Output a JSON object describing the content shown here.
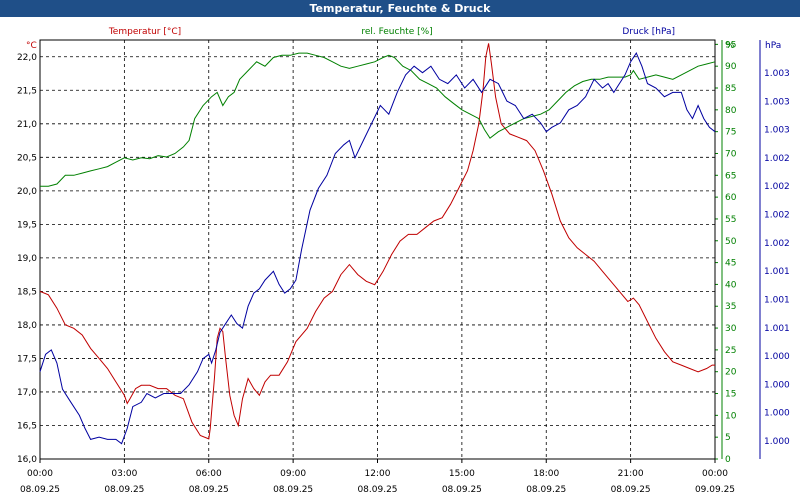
{
  "chart_data": {
    "type": "line",
    "title": "Temperatur, Feuchte & Druck",
    "x_ticks": [
      {
        "time": "00:00",
        "date": "08.09.25"
      },
      {
        "time": "03:00",
        "date": "08.09.25"
      },
      {
        "time": "06:00",
        "date": "08.09.25"
      },
      {
        "time": "09:00",
        "date": "08.09.25"
      },
      {
        "time": "12:00",
        "date": "08.09.25"
      },
      {
        "time": "15:00",
        "date": "08.09.25"
      },
      {
        "time": "18:00",
        "date": "08.09.25"
      },
      {
        "time": "21:00",
        "date": "08.09.25"
      },
      {
        "time": "00:00",
        "date": "09.09.25"
      }
    ],
    "xlim": [
      0,
      24
    ],
    "axes": {
      "temperature": {
        "unit": "°C",
        "ylim": [
          16.0,
          22.25
        ],
        "ticks": [
          "16,0",
          "16,5",
          "17,0",
          "17,5",
          "18,0",
          "18,5",
          "19,0",
          "19,5",
          "20,0",
          "20,5",
          "21,0",
          "21,5",
          "22,0"
        ],
        "color": "#c00000"
      },
      "humidity": {
        "unit": "%",
        "ylim": [
          0,
          96
        ],
        "ticks": [
          "0",
          "5",
          "10",
          "15",
          "20",
          "25",
          "30",
          "35",
          "40",
          "45",
          "50",
          "55",
          "60",
          "65",
          "70",
          "75",
          "80",
          "85",
          "90",
          "95"
        ],
        "color": "#008000"
      },
      "pressure": {
        "unit": "hPa",
        "ticks": [
          "1.000",
          "1.000",
          "1.000",
          "1.000",
          "1.001",
          "1.001",
          "1.001",
          "1.002",
          "1.002",
          "1.002",
          "1.002",
          "1.003",
          "1.003",
          "1.003"
        ],
        "color": "#0000a0"
      }
    },
    "series": [
      {
        "name": "Temperatur [°C]",
        "axis": "temperature",
        "color": "#c00000",
        "points": [
          [
            0,
            18.5
          ],
          [
            0.3,
            18.45
          ],
          [
            0.6,
            18.25
          ],
          [
            0.9,
            18.0
          ],
          [
            1.2,
            17.95
          ],
          [
            1.5,
            17.85
          ],
          [
            1.8,
            17.65
          ],
          [
            2.1,
            17.5
          ],
          [
            2.4,
            17.35
          ],
          [
            2.7,
            17.15
          ],
          [
            3.0,
            16.95
          ],
          [
            3.1,
            16.83
          ],
          [
            3.2,
            16.9
          ],
          [
            3.4,
            17.05
          ],
          [
            3.6,
            17.1
          ],
          [
            3.9,
            17.1
          ],
          [
            4.2,
            17.05
          ],
          [
            4.5,
            17.05
          ],
          [
            4.8,
            16.95
          ],
          [
            5.1,
            16.9
          ],
          [
            5.4,
            16.55
          ],
          [
            5.7,
            16.35
          ],
          [
            6.0,
            16.3
          ],
          [
            6.05,
            16.45
          ],
          [
            6.2,
            17.2
          ],
          [
            6.3,
            17.8
          ],
          [
            6.4,
            17.95
          ],
          [
            6.5,
            17.9
          ],
          [
            6.6,
            17.5
          ],
          [
            6.75,
            16.95
          ],
          [
            6.9,
            16.65
          ],
          [
            7.05,
            16.5
          ],
          [
            7.2,
            16.9
          ],
          [
            7.4,
            17.2
          ],
          [
            7.6,
            17.05
          ],
          [
            7.8,
            16.95
          ],
          [
            8.0,
            17.15
          ],
          [
            8.2,
            17.25
          ],
          [
            8.5,
            17.25
          ],
          [
            8.8,
            17.45
          ],
          [
            9.1,
            17.75
          ],
          [
            9.5,
            17.95
          ],
          [
            9.8,
            18.2
          ],
          [
            10.1,
            18.4
          ],
          [
            10.4,
            18.5
          ],
          [
            10.7,
            18.75
          ],
          [
            11.0,
            18.9
          ],
          [
            11.3,
            18.75
          ],
          [
            11.6,
            18.65
          ],
          [
            11.9,
            18.6
          ],
          [
            12.2,
            18.8
          ],
          [
            12.5,
            19.05
          ],
          [
            12.8,
            19.25
          ],
          [
            13.1,
            19.35
          ],
          [
            13.4,
            19.35
          ],
          [
            13.7,
            19.45
          ],
          [
            14.0,
            19.55
          ],
          [
            14.3,
            19.6
          ],
          [
            14.6,
            19.8
          ],
          [
            14.9,
            20.05
          ],
          [
            15.2,
            20.3
          ],
          [
            15.4,
            20.6
          ],
          [
            15.6,
            21.0
          ],
          [
            15.75,
            21.5
          ],
          [
            15.85,
            22.0
          ],
          [
            15.95,
            22.2
          ],
          [
            16.05,
            21.9
          ],
          [
            16.2,
            21.4
          ],
          [
            16.4,
            21.0
          ],
          [
            16.7,
            20.85
          ],
          [
            17.0,
            20.8
          ],
          [
            17.3,
            20.75
          ],
          [
            17.6,
            20.6
          ],
          [
            17.9,
            20.3
          ],
          [
            18.2,
            19.95
          ],
          [
            18.5,
            19.55
          ],
          [
            18.8,
            19.3
          ],
          [
            19.1,
            19.15
          ],
          [
            19.4,
            19.05
          ],
          [
            19.7,
            18.95
          ],
          [
            20.0,
            18.8
          ],
          [
            20.3,
            18.65
          ],
          [
            20.6,
            18.5
          ],
          [
            20.9,
            18.35
          ],
          [
            21.1,
            18.4
          ],
          [
            21.3,
            18.3
          ],
          [
            21.6,
            18.05
          ],
          [
            21.9,
            17.8
          ],
          [
            22.2,
            17.6
          ],
          [
            22.5,
            17.45
          ],
          [
            22.8,
            17.4
          ],
          [
            23.1,
            17.35
          ],
          [
            23.4,
            17.3
          ],
          [
            23.7,
            17.35
          ],
          [
            23.9,
            17.4
          ],
          [
            24.0,
            17.4
          ]
        ]
      },
      {
        "name": "rel. Feuchte [%]",
        "axis": "humidity",
        "color": "#008000",
        "points": [
          [
            0,
            62.5
          ],
          [
            0.3,
            62.5
          ],
          [
            0.6,
            63
          ],
          [
            0.9,
            65
          ],
          [
            1.2,
            65
          ],
          [
            1.5,
            65.5
          ],
          [
            1.8,
            66
          ],
          [
            2.1,
            66.5
          ],
          [
            2.4,
            67
          ],
          [
            2.7,
            68
          ],
          [
            3.0,
            69
          ],
          [
            3.3,
            68.5
          ],
          [
            3.6,
            69
          ],
          [
            3.9,
            68.8
          ],
          [
            4.2,
            69.5
          ],
          [
            4.5,
            69.2
          ],
          [
            4.8,
            70
          ],
          [
            5.1,
            71.5
          ],
          [
            5.3,
            73
          ],
          [
            5.5,
            78
          ],
          [
            5.8,
            81
          ],
          [
            6.1,
            83
          ],
          [
            6.3,
            84
          ],
          [
            6.5,
            81
          ],
          [
            6.7,
            83
          ],
          [
            6.9,
            84
          ],
          [
            7.1,
            87
          ],
          [
            7.4,
            89
          ],
          [
            7.7,
            91
          ],
          [
            8.0,
            90
          ],
          [
            8.3,
            92
          ],
          [
            8.6,
            92.5
          ],
          [
            8.9,
            92.5
          ],
          [
            9.2,
            93
          ],
          [
            9.5,
            93
          ],
          [
            9.8,
            92.5
          ],
          [
            10.1,
            92
          ],
          [
            10.4,
            91
          ],
          [
            10.7,
            90
          ],
          [
            11.0,
            89.5
          ],
          [
            11.3,
            90
          ],
          [
            11.6,
            90.5
          ],
          [
            11.9,
            91
          ],
          [
            12.2,
            92
          ],
          [
            12.4,
            92.5
          ],
          [
            12.6,
            92
          ],
          [
            12.9,
            90
          ],
          [
            13.2,
            89
          ],
          [
            13.5,
            87
          ],
          [
            13.8,
            86
          ],
          [
            14.1,
            85
          ],
          [
            14.4,
            83
          ],
          [
            14.7,
            81.5
          ],
          [
            15.0,
            80
          ],
          [
            15.3,
            79
          ],
          [
            15.6,
            78
          ],
          [
            15.8,
            75.5
          ],
          [
            16.0,
            73.5
          ],
          [
            16.3,
            75
          ],
          [
            16.6,
            76
          ],
          [
            16.9,
            77
          ],
          [
            17.2,
            78
          ],
          [
            17.5,
            78.5
          ],
          [
            17.8,
            79
          ],
          [
            18.1,
            80
          ],
          [
            18.4,
            82
          ],
          [
            18.7,
            84
          ],
          [
            19.0,
            85.5
          ],
          [
            19.3,
            86.5
          ],
          [
            19.6,
            87
          ],
          [
            19.9,
            87
          ],
          [
            20.2,
            87.5
          ],
          [
            20.5,
            87.5
          ],
          [
            20.8,
            87.5
          ],
          [
            21.0,
            88
          ],
          [
            21.1,
            89
          ],
          [
            21.3,
            87
          ],
          [
            21.6,
            87.5
          ],
          [
            21.9,
            88
          ],
          [
            22.2,
            87.5
          ],
          [
            22.5,
            87
          ],
          [
            22.8,
            88
          ],
          [
            23.1,
            89
          ],
          [
            23.4,
            90
          ],
          [
            23.7,
            90.5
          ],
          [
            24.0,
            91
          ]
        ]
      },
      {
        "name": "Druck [hPa]",
        "axis": "humidity",
        "color": "#0000a0",
        "points": [
          [
            0,
            20
          ],
          [
            0.2,
            24
          ],
          [
            0.4,
            25
          ],
          [
            0.6,
            22
          ],
          [
            0.8,
            16
          ],
          [
            1.1,
            13
          ],
          [
            1.4,
            10
          ],
          [
            1.6,
            7
          ],
          [
            1.8,
            4.5
          ],
          [
            2.1,
            5
          ],
          [
            2.4,
            4.5
          ],
          [
            2.7,
            4.5
          ],
          [
            2.9,
            3.5
          ],
          [
            3.1,
            7
          ],
          [
            3.3,
            12
          ],
          [
            3.6,
            13
          ],
          [
            3.8,
            15
          ],
          [
            4.1,
            14
          ],
          [
            4.4,
            15
          ],
          [
            4.7,
            15
          ],
          [
            5.0,
            15
          ],
          [
            5.3,
            17
          ],
          [
            5.6,
            20
          ],
          [
            5.8,
            23
          ],
          [
            6.0,
            24
          ],
          [
            6.1,
            22
          ],
          [
            6.25,
            25
          ],
          [
            6.4,
            29
          ],
          [
            6.6,
            31
          ],
          [
            6.8,
            33
          ],
          [
            7.0,
            31
          ],
          [
            7.2,
            30
          ],
          [
            7.4,
            35
          ],
          [
            7.6,
            38
          ],
          [
            7.8,
            39
          ],
          [
            8.0,
            41
          ],
          [
            8.3,
            43
          ],
          [
            8.5,
            40
          ],
          [
            8.7,
            38
          ],
          [
            8.9,
            39
          ],
          [
            9.1,
            41
          ],
          [
            9.3,
            48
          ],
          [
            9.6,
            57
          ],
          [
            9.9,
            62
          ],
          [
            10.2,
            65
          ],
          [
            10.5,
            70
          ],
          [
            10.8,
            72
          ],
          [
            11.0,
            73
          ],
          [
            11.2,
            69
          ],
          [
            11.5,
            73
          ],
          [
            11.8,
            77
          ],
          [
            12.1,
            81
          ],
          [
            12.4,
            79
          ],
          [
            12.7,
            84
          ],
          [
            13.0,
            88
          ],
          [
            13.3,
            90
          ],
          [
            13.6,
            88.5
          ],
          [
            13.9,
            90
          ],
          [
            14.2,
            87
          ],
          [
            14.5,
            86
          ],
          [
            14.8,
            88
          ],
          [
            15.1,
            85
          ],
          [
            15.4,
            87
          ],
          [
            15.7,
            84
          ],
          [
            16.0,
            87
          ],
          [
            16.3,
            86
          ],
          [
            16.6,
            82
          ],
          [
            16.9,
            81
          ],
          [
            17.2,
            78
          ],
          [
            17.5,
            79
          ],
          [
            17.8,
            77
          ],
          [
            18.0,
            75
          ],
          [
            18.2,
            76
          ],
          [
            18.5,
            77
          ],
          [
            18.8,
            80
          ],
          [
            19.1,
            81
          ],
          [
            19.4,
            83
          ],
          [
            19.7,
            87
          ],
          [
            20.0,
            85
          ],
          [
            20.2,
            86
          ],
          [
            20.4,
            84
          ],
          [
            20.6,
            86
          ],
          [
            20.8,
            88
          ],
          [
            21.0,
            91
          ],
          [
            21.2,
            93
          ],
          [
            21.4,
            90
          ],
          [
            21.6,
            86
          ],
          [
            21.9,
            85
          ],
          [
            22.2,
            83
          ],
          [
            22.5,
            84
          ],
          [
            22.8,
            84
          ],
          [
            23.0,
            80
          ],
          [
            23.2,
            78
          ],
          [
            23.4,
            81
          ],
          [
            23.6,
            78
          ],
          [
            23.8,
            76
          ],
          [
            24.0,
            75
          ]
        ]
      }
    ]
  }
}
